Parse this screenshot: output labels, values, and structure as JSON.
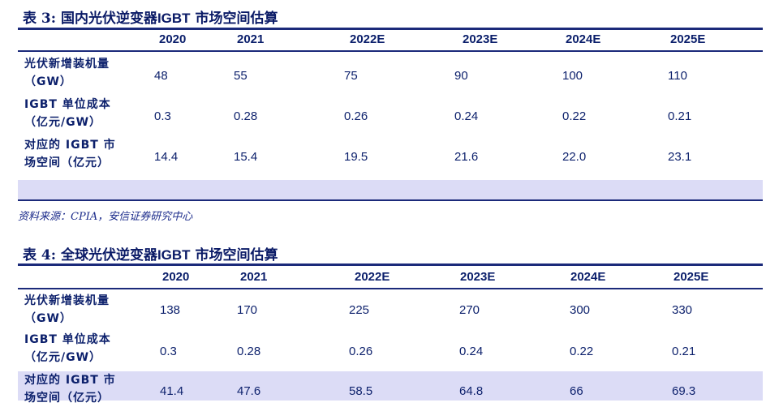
{
  "table3": {
    "title_prefix": "表 3:",
    "title_main": "国内光伏逆变器",
    "title_en": "IGBT",
    "title_suffix": "市场空间估算",
    "columns": [
      "2020",
      "2021",
      "2022E",
      "2023E",
      "2024E",
      "2025E"
    ],
    "rows": [
      {
        "label1": "光伏新增装机量",
        "label2": "（GW）",
        "values": [
          "48",
          "55",
          "75",
          "90",
          "100",
          "110"
        ]
      },
      {
        "label1": "IGBT 单位成本",
        "label2": "（亿元/GW）",
        "values": [
          "0.3",
          "0.28",
          "0.26",
          "0.24",
          "0.22",
          "0.21"
        ]
      },
      {
        "label1": "对应的 IGBT 市",
        "label2": "场空间（亿元）",
        "values": [
          "14.4",
          "15.4",
          "19.5",
          "21.6",
          "22.0",
          "23.1"
        ]
      }
    ]
  },
  "source": "资料来源：CPIA，安信证券研究中心",
  "table4": {
    "title_prefix": "表 4:",
    "title_main": "全球光伏逆变器",
    "title_en": "IGBT",
    "title_suffix": "市场空间估算",
    "columns": [
      "2020",
      "2021",
      "2022E",
      "2023E",
      "2024E",
      "2025E"
    ],
    "rows": [
      {
        "label1": "光伏新增装机量",
        "label2": "（GW）",
        "values": [
          "138",
          "170",
          "225",
          "270",
          "300",
          "330"
        ]
      },
      {
        "label1": "IGBT 单位成本",
        "label2": "（亿元/GW）",
        "values": [
          "0.3",
          "0.28",
          "0.26",
          "0.24",
          "0.22",
          "0.21"
        ]
      },
      {
        "label1": "对应的 IGBT 市",
        "label2": "场空间（亿元）",
        "values": [
          "41.4",
          "47.6",
          "58.5",
          "64.8",
          "66",
          "69.3"
        ]
      }
    ]
  },
  "colors": {
    "text": "#0b1f6b",
    "rule": "#1b2a7a",
    "band": "#dcdcf6"
  }
}
